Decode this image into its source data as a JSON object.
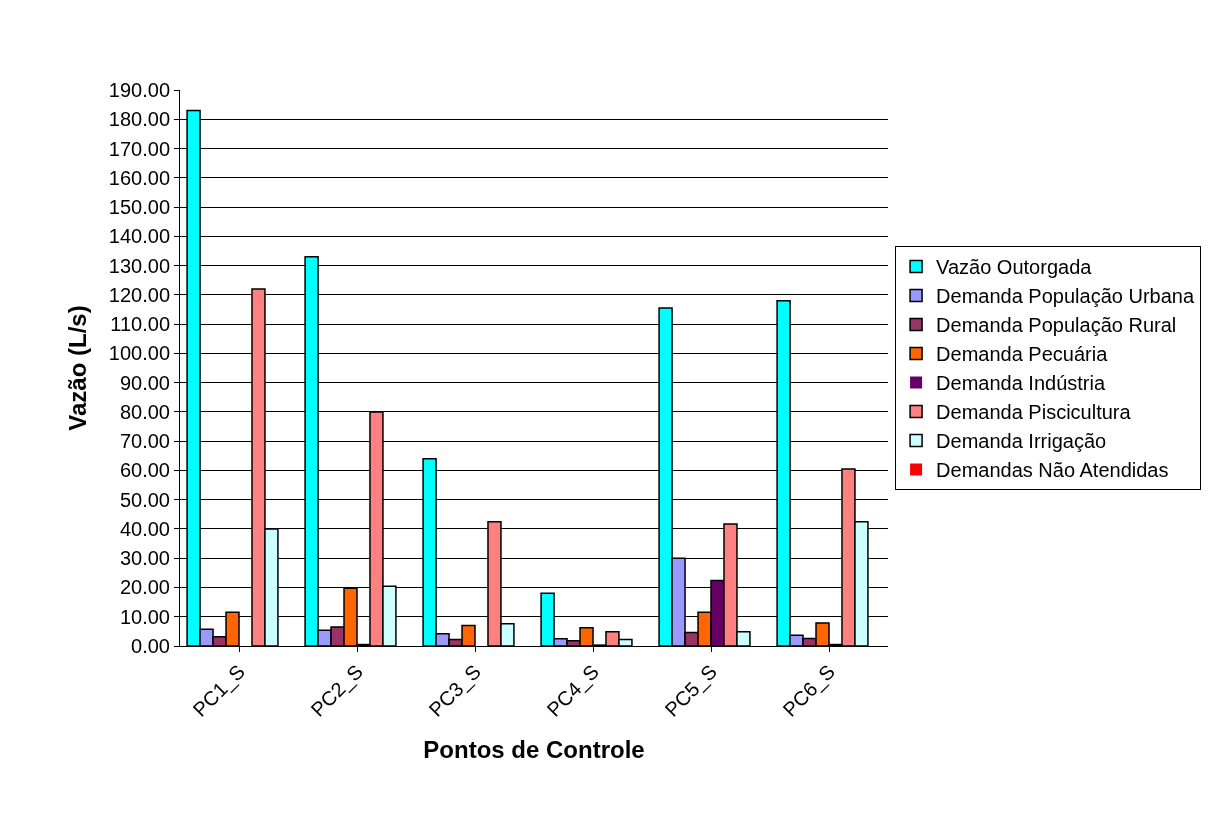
{
  "chart_data": {
    "type": "bar",
    "xlabel": "Pontos de Controle",
    "ylabel": "Vazão (L/s)",
    "categories": [
      "PC1_S",
      "PC2_S",
      "PC3_S",
      "PC4_S",
      "PC5_S",
      "PC6_S"
    ],
    "series": [
      {
        "name": "Vazão Outorgada",
        "color": "#00ffff",
        "values": [
          183,
          133,
          64,
          18,
          115.5,
          118
        ]
      },
      {
        "name": "Demanda População Urbana",
        "color": "#9999ff",
        "values": [
          5.7,
          5.4,
          4.2,
          2.5,
          30,
          3.7
        ]
      },
      {
        "name": "Demanda População Rural",
        "color": "#993366",
        "values": [
          3.2,
          6.5,
          2.2,
          1.8,
          4.6,
          2.6
        ]
      },
      {
        "name": "Demanda Pecuária",
        "color": "#ff6600",
        "values": [
          11.5,
          19.7,
          7,
          6.2,
          11.5,
          7.9
        ]
      },
      {
        "name": "Demanda Indústria",
        "color": "#660066",
        "values": [
          0,
          0.5,
          0,
          0.3,
          22.4,
          0.5
        ]
      },
      {
        "name": "Demanda Piscicultura",
        "color": "#ff8080",
        "values": [
          122,
          80,
          42.5,
          4.9,
          41.7,
          60.5
        ]
      },
      {
        "name": "Demanda Irrigação",
        "color": "#ccffff",
        "values": [
          40,
          20.4,
          7.6,
          2.2,
          4.9,
          42.5
        ]
      },
      {
        "name": "Demandas Não Atendidas",
        "color": "#ff0000",
        "values": [
          0,
          0,
          0,
          0,
          0,
          0
        ]
      }
    ],
    "ylim": [
      0,
      190
    ],
    "yticks": [
      {
        "value": 0,
        "label": "0.00"
      },
      {
        "value": 10,
        "label": "10.00"
      },
      {
        "value": 20,
        "label": "20.00"
      },
      {
        "value": 30,
        "label": "30.00"
      },
      {
        "value": 40,
        "label": "40.00"
      },
      {
        "value": 50,
        "label": "50.00"
      },
      {
        "value": 60,
        "label": "60.00"
      },
      {
        "value": 70,
        "label": "70.00"
      },
      {
        "value": 80,
        "label": "80.00"
      },
      {
        "value": 90,
        "label": "90.00"
      },
      {
        "value": 100,
        "label": "100.00"
      },
      {
        "value": 110,
        "label": "110.00"
      },
      {
        "value": 120,
        "label": "120.00"
      },
      {
        "value": 130,
        "label": "130.00"
      },
      {
        "value": 140,
        "label": "140.00"
      },
      {
        "value": 150,
        "label": "150.00"
      },
      {
        "value": 160,
        "label": "160.00"
      },
      {
        "value": 170,
        "label": "170.00"
      },
      {
        "value": 180,
        "label": "180.00"
      },
      {
        "value": 190,
        "label": "190.00"
      }
    ],
    "grid": "y",
    "legend": "right"
  }
}
